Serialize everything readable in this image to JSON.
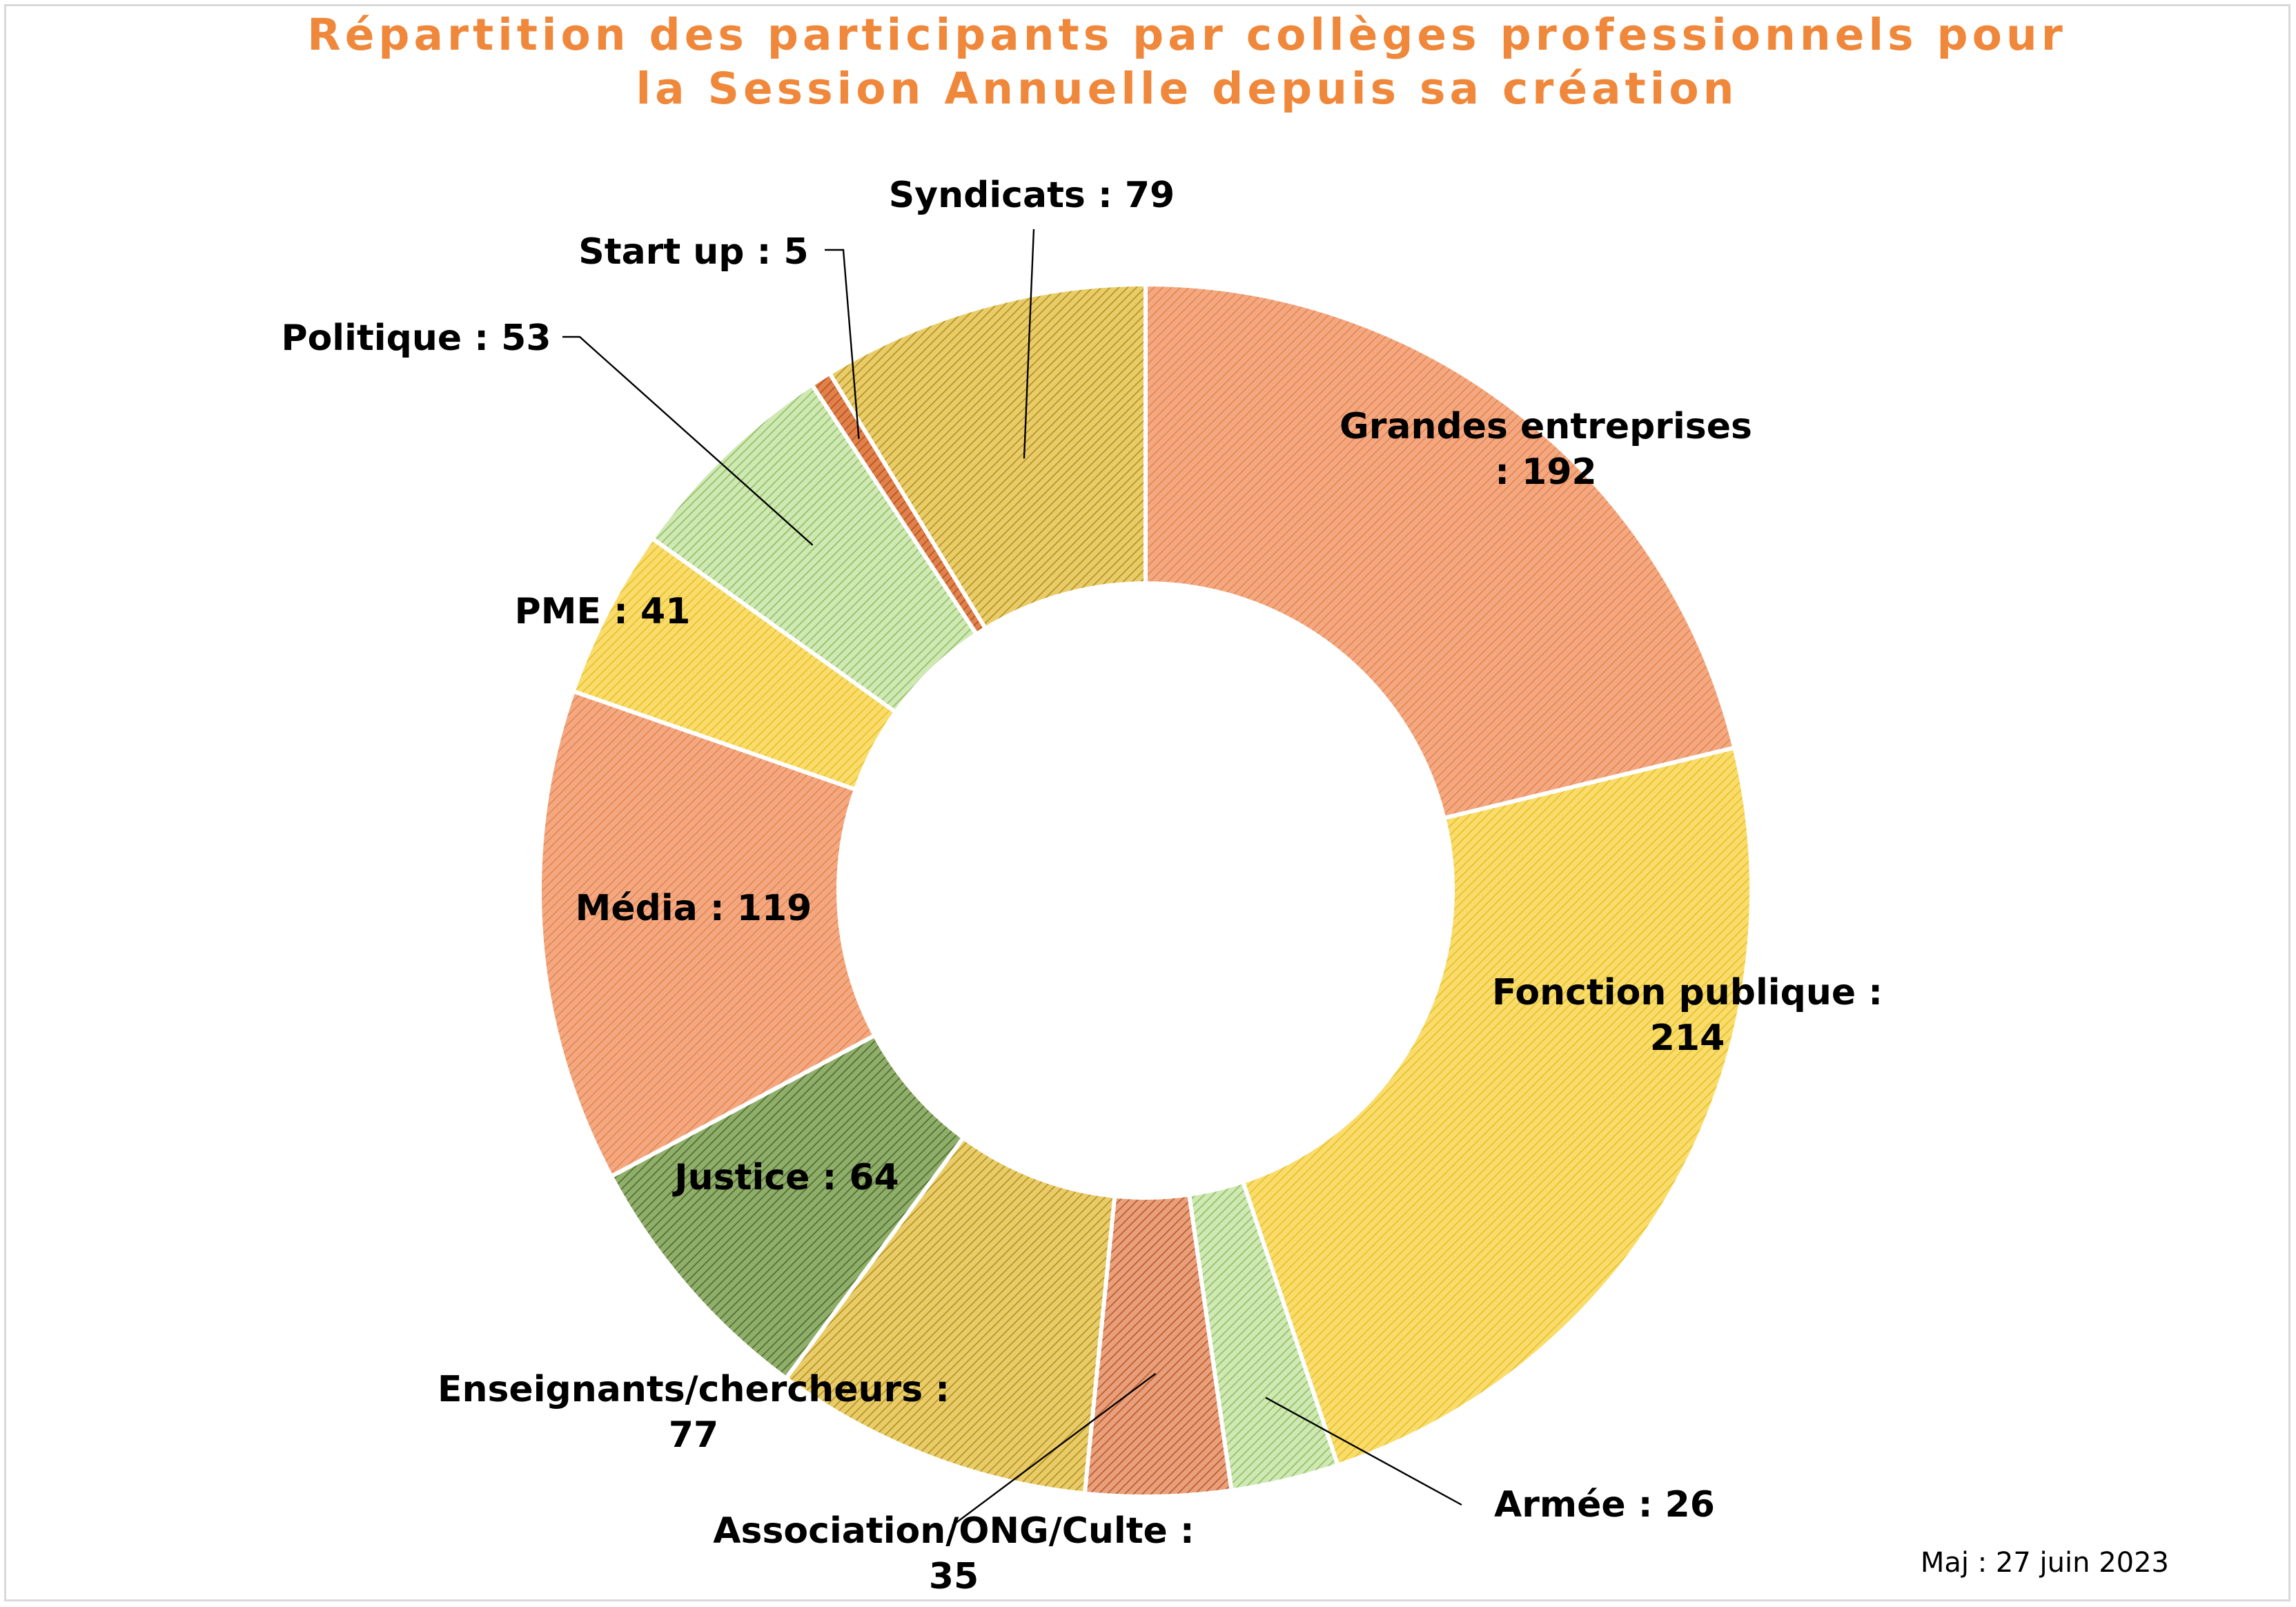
{
  "colors": {
    "orange": "#f4a882",
    "orange_line": "#e6884f",
    "yellow": "#f9dc6c",
    "yellow_line": "#e8c22a",
    "lightgreen": "#cfe8b4",
    "lightgreen_line": "#93c265",
    "darkgreen": "#8fae6a",
    "darkgreen_line": "#536f32",
    "gold": "#e9cc6a",
    "gold_line": "#b8941f",
    "rust": "#e8a07c",
    "rust_line": "#bf5c2b",
    "darkorange": "#e0804a",
    "darkorange_line": "#b95420",
    "title": "#f0883c"
  },
  "chart_data": {
    "type": "pie",
    "variant": "doughnut",
    "title_lines": [
      "Répartition des participants par collèges professionnels pour",
      "la Session Annuelle depuis sa création"
    ],
    "slices": [
      {
        "category": "Grandes entreprises",
        "value": 192,
        "label_lines": [
          "Grandes entreprises",
          ": 192"
        ],
        "color": "orange"
      },
      {
        "category": "Fonction publique",
        "value": 214,
        "label_lines": [
          "Fonction publique :",
          "214"
        ],
        "color": "yellow"
      },
      {
        "category": "Armée",
        "value": 26,
        "label_lines": [
          "Armée : 26"
        ],
        "color": "lightgreen"
      },
      {
        "category": "Association/ONG/Culte",
        "value": 35,
        "label_lines": [
          "Association/ONG/Culte :",
          "35"
        ],
        "color": "rust"
      },
      {
        "category": "Enseignants/chercheurs",
        "value": 77,
        "label_lines": [
          "Enseignants/chercheurs :",
          "77"
        ],
        "color": "gold"
      },
      {
        "category": "Justice",
        "value": 64,
        "label_lines": [
          "Justice : 64"
        ],
        "color": "darkgreen"
      },
      {
        "category": "Média",
        "value": 119,
        "label_lines": [
          "Média : 119"
        ],
        "color": "orange"
      },
      {
        "category": "PME",
        "value": 41,
        "label_lines": [
          "PME : 41"
        ],
        "color": "yellow"
      },
      {
        "category": "Politique",
        "value": 53,
        "label_lines": [
          "Politique : 53"
        ],
        "color": "lightgreen"
      },
      {
        "category": "Start up",
        "value": 5,
        "label_lines": [
          "Start up : 5"
        ],
        "color": "darkorange"
      },
      {
        "category": "Syndicats",
        "value": 79,
        "label_lines": [
          "Syndicats : 79"
        ],
        "color": "gold"
      }
    ],
    "legend": "none",
    "start": "top",
    "direction": "clockwise"
  },
  "update_note": "Maj : 27 juin 2023"
}
